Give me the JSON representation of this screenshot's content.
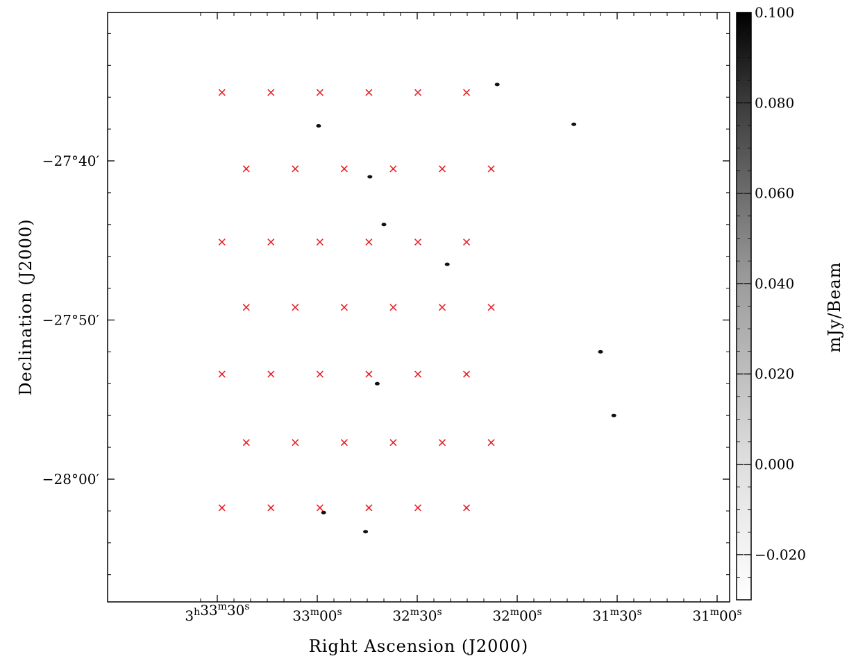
{
  "chart_data": {
    "type": "heatmap",
    "description_kind": "radio mosaic image with pointing centres",
    "xlabel": "Right Ascension (J2000)",
    "ylabel": "Declination (J2000)",
    "x_ticks": [
      {
        "value_sec": 210,
        "h": "3",
        "m": "33",
        "s": "30"
      },
      {
        "value_sec": 180,
        "h": "",
        "m": "33",
        "s": "00"
      },
      {
        "value_sec": 150,
        "h": "",
        "m": "32",
        "s": "30"
      },
      {
        "value_sec": 120,
        "h": "",
        "m": "32",
        "s": "00"
      },
      {
        "value_sec": 90,
        "h": "",
        "m": "31",
        "s": "30"
      },
      {
        "value_sec": 60,
        "h": "",
        "m": "31",
        "s": "00"
      }
    ],
    "y_ticks": [
      {
        "value_arcmin": -40,
        "label": "−27°40′"
      },
      {
        "value_arcmin": -50,
        "label": "−27°50′"
      },
      {
        "value_arcmin": -60,
        "label": "−28°00′"
      }
    ],
    "colorbar": {
      "label": "mJy/Beam",
      "min": -0.03,
      "max": 0.1,
      "ticks": [
        0.1,
        0.08,
        0.06,
        0.04,
        0.02,
        0.0,
        -0.02
      ],
      "tick_labels": [
        "0.100",
        "0.080",
        "0.060",
        "0.040",
        "0.020",
        "0.000",
        "−0.020"
      ]
    },
    "marker_color": "#e8202a",
    "marker_symbol": "×",
    "pointing_rows": [
      {
        "dec_arcmin": -35.7,
        "ra_sec": [
          208.6,
          193.9,
          179.2,
          164.5,
          149.8,
          135.2
        ]
      },
      {
        "dec_arcmin": -40.5,
        "ra_sec": [
          201.3,
          186.6,
          171.9,
          157.2,
          142.5,
          127.8
        ]
      },
      {
        "dec_arcmin": -45.1,
        "ra_sec": [
          208.6,
          193.9,
          179.2,
          164.5,
          149.8,
          135.2
        ]
      },
      {
        "dec_arcmin": -49.2,
        "ra_sec": [
          201.3,
          186.6,
          171.9,
          157.2,
          142.5,
          127.8
        ]
      },
      {
        "dec_arcmin": -53.4,
        "ra_sec": [
          208.6,
          193.9,
          179.2,
          164.5,
          149.8,
          135.2
        ]
      },
      {
        "dec_arcmin": -57.7,
        "ra_sec": [
          201.3,
          186.6,
          171.9,
          157.2,
          142.5,
          127.8
        ]
      },
      {
        "dec_arcmin": -61.8,
        "ra_sec": [
          208.6,
          193.9,
          179.2,
          164.5,
          149.8,
          135.2
        ]
      }
    ],
    "bright_sources": [
      {
        "ra_sec": 179.6,
        "dec_arcmin": -37.8
      },
      {
        "ra_sec": 164.2,
        "dec_arcmin": -41.0
      },
      {
        "ra_sec": 160.0,
        "dec_arcmin": -44.0
      },
      {
        "ra_sec": 141.0,
        "dec_arcmin": -46.5
      },
      {
        "ra_sec": 162.0,
        "dec_arcmin": -54.0
      },
      {
        "ra_sec": 178.1,
        "dec_arcmin": -62.1
      },
      {
        "ra_sec": 165.5,
        "dec_arcmin": -63.3
      },
      {
        "ra_sec": 103.0,
        "dec_arcmin": -37.7
      },
      {
        "ra_sec": 91.0,
        "dec_arcmin": -56.0
      },
      {
        "ra_sec": 95.0,
        "dec_arcmin": -52.0
      },
      {
        "ra_sec": 126.0,
        "dec_arcmin": -35.2
      }
    ],
    "grid": false,
    "legend": "none"
  }
}
